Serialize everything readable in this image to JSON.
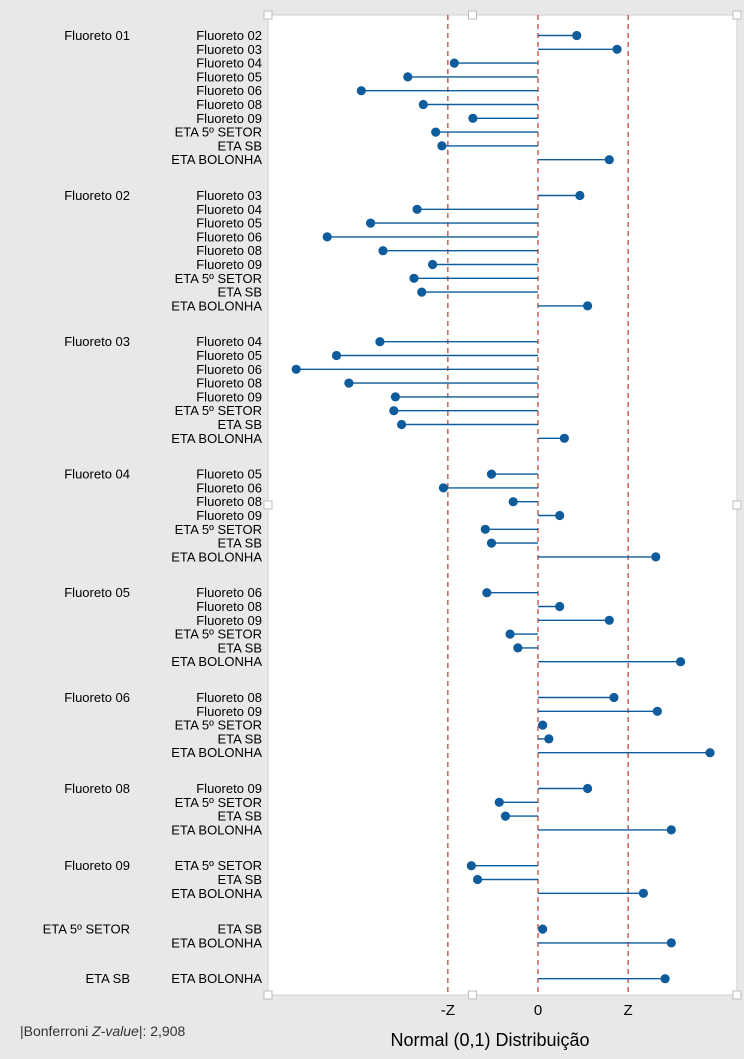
{
  "chart_data": {
    "type": "interval-plot",
    "xlabel": "Normal (0,1) Distribuição",
    "x_ticks": [
      "-Z",
      "0",
      "Z"
    ],
    "critical_z": 2.908,
    "footnote_prefix": "|Bonferroni ",
    "footnote_italic": "Z-value",
    "footnote_suffix": "|: 2,908",
    "groups": [
      {
        "name": "Fluoreto 01",
        "comparisons": [
          {
            "label": "Fluoreto 02",
            "z": 1.25
          },
          {
            "label": "Fluoreto 03",
            "z": 2.55
          },
          {
            "label": "Fluoreto 04",
            "z": -2.7
          },
          {
            "label": "Fluoreto 05",
            "z": -4.2
          },
          {
            "label": "Fluoreto 06",
            "z": -5.7
          },
          {
            "label": "Fluoreto 08",
            "z": -3.7
          },
          {
            "label": "Fluoreto 09",
            "z": -2.1
          },
          {
            "label": "ETA 5º SETOR",
            "z": -3.3
          },
          {
            "label": "ETA SB",
            "z": -3.1
          },
          {
            "label": "ETA BOLONHA",
            "z": 2.3
          }
        ]
      },
      {
        "name": "Fluoreto 02",
        "comparisons": [
          {
            "label": "Fluoreto 03",
            "z": 1.35
          },
          {
            "label": "Fluoreto 04",
            "z": -3.9
          },
          {
            "label": "Fluoreto 05",
            "z": -5.4
          },
          {
            "label": "Fluoreto 06",
            "z": -6.8
          },
          {
            "label": "Fluoreto 08",
            "z": -5.0
          },
          {
            "label": "Fluoreto 09",
            "z": -3.4
          },
          {
            "label": "ETA 5º SETOR",
            "z": -4.0
          },
          {
            "label": "ETA SB",
            "z": -3.75
          },
          {
            "label": "ETA BOLONHA",
            "z": 1.6
          }
        ]
      },
      {
        "name": "Fluoreto 03",
        "comparisons": [
          {
            "label": "Fluoreto 04",
            "z": -5.1
          },
          {
            "label": "Fluoreto 05",
            "z": -6.5
          },
          {
            "label": "Fluoreto 06",
            "z": -7.8
          },
          {
            "label": "Fluoreto 08",
            "z": -6.1
          },
          {
            "label": "Fluoreto 09",
            "z": -4.6
          },
          {
            "label": "ETA 5º SETOR",
            "z": -4.65
          },
          {
            "label": "ETA SB",
            "z": -4.4
          },
          {
            "label": "ETA BOLONHA",
            "z": 0.85
          }
        ]
      },
      {
        "name": "Fluoreto 04",
        "comparisons": [
          {
            "label": "Fluoreto 05",
            "z": -1.5
          },
          {
            "label": "Fluoreto 06",
            "z": -3.05
          },
          {
            "label": "Fluoreto 08",
            "z": -0.8
          },
          {
            "label": "Fluoreto 09",
            "z": 0.7
          },
          {
            "label": "ETA 5º SETOR",
            "z": -1.7
          },
          {
            "label": "ETA SB",
            "z": -1.5
          },
          {
            "label": "ETA BOLONHA",
            "z": 3.8
          }
        ]
      },
      {
        "name": "Fluoreto 05",
        "comparisons": [
          {
            "label": "Fluoreto 06",
            "z": -1.65
          },
          {
            "label": "Fluoreto 08",
            "z": 0.7
          },
          {
            "label": "Fluoreto 09",
            "z": 2.3
          },
          {
            "label": "ETA 5º SETOR",
            "z": -0.9
          },
          {
            "label": "ETA SB",
            "z": -0.65
          },
          {
            "label": "ETA BOLONHA",
            "z": 4.6
          }
        ]
      },
      {
        "name": "Fluoreto 06",
        "comparisons": [
          {
            "label": "Fluoreto 08",
            "z": 2.45
          },
          {
            "label": "Fluoreto 09",
            "z": 3.85
          },
          {
            "label": "ETA 5º SETOR",
            "z": 0.15
          },
          {
            "label": "ETA SB",
            "z": 0.35
          },
          {
            "label": "ETA BOLONHA",
            "z": 5.55
          }
        ]
      },
      {
        "name": "Fluoreto 08",
        "comparisons": [
          {
            "label": "Fluoreto 09",
            "z": 1.6
          },
          {
            "label": "ETA 5º SETOR",
            "z": -1.25
          },
          {
            "label": "ETA SB",
            "z": -1.05
          },
          {
            "label": "ETA BOLONHA",
            "z": 4.3
          }
        ]
      },
      {
        "name": "Fluoreto 09",
        "comparisons": [
          {
            "label": "ETA 5º SETOR",
            "z": -2.15
          },
          {
            "label": "ETA SB",
            "z": -1.95
          },
          {
            "label": "ETA BOLONHA",
            "z": 3.4
          }
        ]
      },
      {
        "name": "ETA 5º SETOR",
        "comparisons": [
          {
            "label": "ETA SB",
            "z": 0.15
          },
          {
            "label": "ETA BOLONHA",
            "z": 4.3
          }
        ]
      },
      {
        "name": "ETA SB",
        "comparisons": [
          {
            "label": "ETA BOLONHA",
            "z": 4.1
          }
        ]
      }
    ],
    "colors": {
      "page_bg": "#e8e8e8",
      "plot_bg": "#ffffff",
      "series": "#0f5c9c",
      "ref_line": "#c0392b",
      "handle": "#ffffff"
    }
  }
}
